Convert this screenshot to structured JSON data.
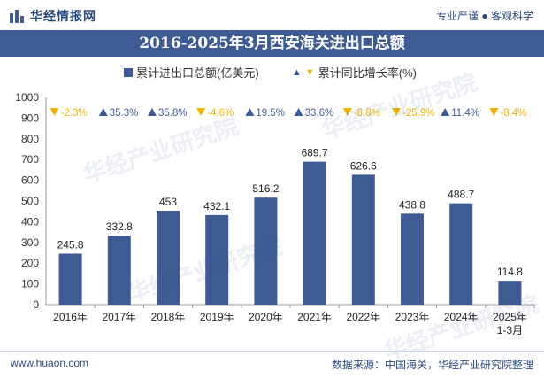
{
  "header": {
    "brand": "华经情报网",
    "tagline": "专业严谨 ● 客观科学"
  },
  "title": "2016-2025年3月西安海关进出口总额",
  "legend": {
    "bar_label": "累计进出口总额(亿美元)",
    "growth_label": "累计同比增长率(%)"
  },
  "chart_data": {
    "type": "bar",
    "categories": [
      "2016年",
      "2017年",
      "2018年",
      "2019年",
      "2020年",
      "2021年",
      "2022年",
      "2023年",
      "2024年",
      "2025年\n1-3月"
    ],
    "series": [
      {
        "name": "累计进出口总额(亿美元)",
        "values": [
          245.8,
          332.8,
          453,
          432.1,
          516.2,
          689.7,
          626.6,
          438.8,
          488.7,
          114.8
        ]
      },
      {
        "name": "累计同比增长率(%)",
        "values": [
          -2.3,
          35.3,
          35.8,
          -4.6,
          19.5,
          33.6,
          -8.8,
          -25.9,
          11.4,
          -8.4
        ]
      }
    ],
    "bar_labels": [
      "245.8",
      "332.8",
      "453",
      "432.1",
      "516.2",
      "689.7",
      "626.6",
      "438.8",
      "488.7",
      "114.8"
    ],
    "growth_labels": [
      "-2.3%",
      "35.3%",
      "35.8%",
      "-4.6%",
      "19.5%",
      "33.6%",
      "-8.8%",
      "-25.9%",
      "11.4%",
      "-8.4%"
    ],
    "ylim": [
      0,
      1000
    ],
    "yticks": [
      0,
      100,
      200,
      300,
      400,
      500,
      600,
      700,
      800,
      900,
      1000
    ],
    "colors": {
      "bar": "#3f5b93",
      "up": "#3f5b93",
      "down": "#f0b400",
      "axis": "#999999"
    }
  },
  "footer": {
    "site": "www.huaon.com",
    "source": "数据来源：中国海关，华经产业研究院整理"
  },
  "watermark": "华经产业研究院"
}
